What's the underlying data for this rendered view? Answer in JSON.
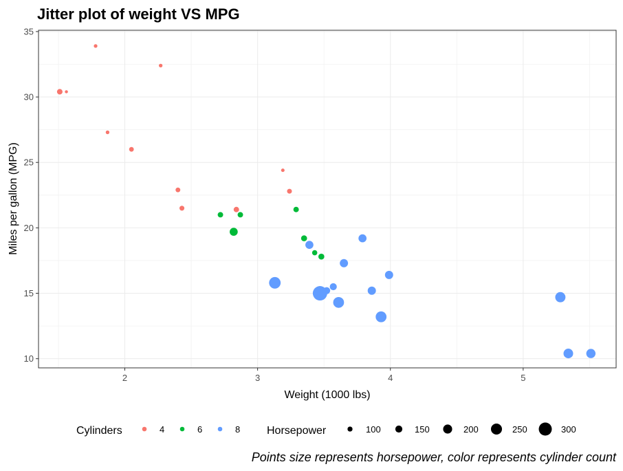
{
  "chart_data": {
    "type": "scatter",
    "title": "Jitter plot of weight VS MPG",
    "xlabel": "Weight (1000 lbs)",
    "ylabel": "Miles per gallon (MPG)",
    "caption": "Points size represents horsepower, color represents cylinder count",
    "xlim": [
      1.35,
      5.7
    ],
    "ylim": [
      9.3,
      35.1
    ],
    "x_ticks": [
      2,
      3,
      4,
      5
    ],
    "y_ticks": [
      10,
      15,
      20,
      25,
      30,
      35
    ],
    "x_tick_labels": [
      "2",
      "3",
      "4",
      "5"
    ],
    "y_tick_labels": [
      "10",
      "15",
      "20",
      "25",
      "30",
      "35"
    ],
    "grid": true,
    "colors": {
      "4": "#F8766D",
      "6": "#00BA38",
      "8": "#619CFF"
    },
    "legend": {
      "placement": "bottom",
      "color_title": "Cylinders",
      "color_entries": [
        {
          "label": "4",
          "cyl": "4"
        },
        {
          "label": "6",
          "cyl": "6"
        },
        {
          "label": "8",
          "cyl": "8"
        }
      ],
      "size_title": "Horsepower",
      "size_entries": [
        {
          "label": "100",
          "hp": 100
        },
        {
          "label": "150",
          "hp": 150
        },
        {
          "label": "200",
          "hp": 200
        },
        {
          "label": "250",
          "hp": 250
        },
        {
          "label": "300",
          "hp": 300
        }
      ]
    },
    "points": [
      {
        "x": 1.51,
        "y": 30.4,
        "cyl": "4",
        "hp": 113
      },
      {
        "x": 1.56,
        "y": 30.4,
        "cyl": "4",
        "hp": 52
      },
      {
        "x": 1.78,
        "y": 33.9,
        "cyl": "4",
        "hp": 65
      },
      {
        "x": 1.87,
        "y": 27.3,
        "cyl": "4",
        "hp": 66
      },
      {
        "x": 2.05,
        "y": 26.0,
        "cyl": "4",
        "hp": 91
      },
      {
        "x": 2.27,
        "y": 32.4,
        "cyl": "4",
        "hp": 66
      },
      {
        "x": 2.4,
        "y": 22.9,
        "cyl": "4",
        "hp": 93
      },
      {
        "x": 2.43,
        "y": 21.5,
        "cyl": "4",
        "hp": 97
      },
      {
        "x": 2.84,
        "y": 21.4,
        "cyl": "4",
        "hp": 109
      },
      {
        "x": 3.19,
        "y": 24.4,
        "cyl": "4",
        "hp": 62
      },
      {
        "x": 3.24,
        "y": 22.8,
        "cyl": "4",
        "hp": 95
      },
      {
        "x": 2.72,
        "y": 21.0,
        "cyl": "6",
        "hp": 110
      },
      {
        "x": 2.87,
        "y": 21.0,
        "cyl": "6",
        "hp": 110
      },
      {
        "x": 2.82,
        "y": 19.7,
        "cyl": "6",
        "hp": 175
      },
      {
        "x": 3.29,
        "y": 21.4,
        "cyl": "6",
        "hp": 110
      },
      {
        "x": 3.35,
        "y": 19.2,
        "cyl": "6",
        "hp": 123
      },
      {
        "x": 3.43,
        "y": 18.1,
        "cyl": "6",
        "hp": 105
      },
      {
        "x": 3.48,
        "y": 17.8,
        "cyl": "6",
        "hp": 123
      },
      {
        "x": 3.13,
        "y": 15.8,
        "cyl": "8",
        "hp": 264
      },
      {
        "x": 3.39,
        "y": 18.7,
        "cyl": "8",
        "hp": 175
      },
      {
        "x": 3.47,
        "y": 15.0,
        "cyl": "8",
        "hp": 335
      },
      {
        "x": 3.52,
        "y": 15.2,
        "cyl": "8",
        "hp": 150
      },
      {
        "x": 3.57,
        "y": 15.5,
        "cyl": "8",
        "hp": 150
      },
      {
        "x": 3.61,
        "y": 14.3,
        "cyl": "8",
        "hp": 245
      },
      {
        "x": 3.65,
        "y": 17.3,
        "cyl": "8",
        "hp": 180
      },
      {
        "x": 3.79,
        "y": 19.2,
        "cyl": "8",
        "hp": 175
      },
      {
        "x": 3.86,
        "y": 15.2,
        "cyl": "8",
        "hp": 180
      },
      {
        "x": 3.93,
        "y": 13.2,
        "cyl": "8",
        "hp": 245
      },
      {
        "x": 3.99,
        "y": 16.4,
        "cyl": "8",
        "hp": 180
      },
      {
        "x": 5.28,
        "y": 14.7,
        "cyl": "8",
        "hp": 230
      },
      {
        "x": 5.34,
        "y": 10.4,
        "cyl": "8",
        "hp": 215
      },
      {
        "x": 5.51,
        "y": 10.4,
        "cyl": "8",
        "hp": 205
      }
    ]
  }
}
